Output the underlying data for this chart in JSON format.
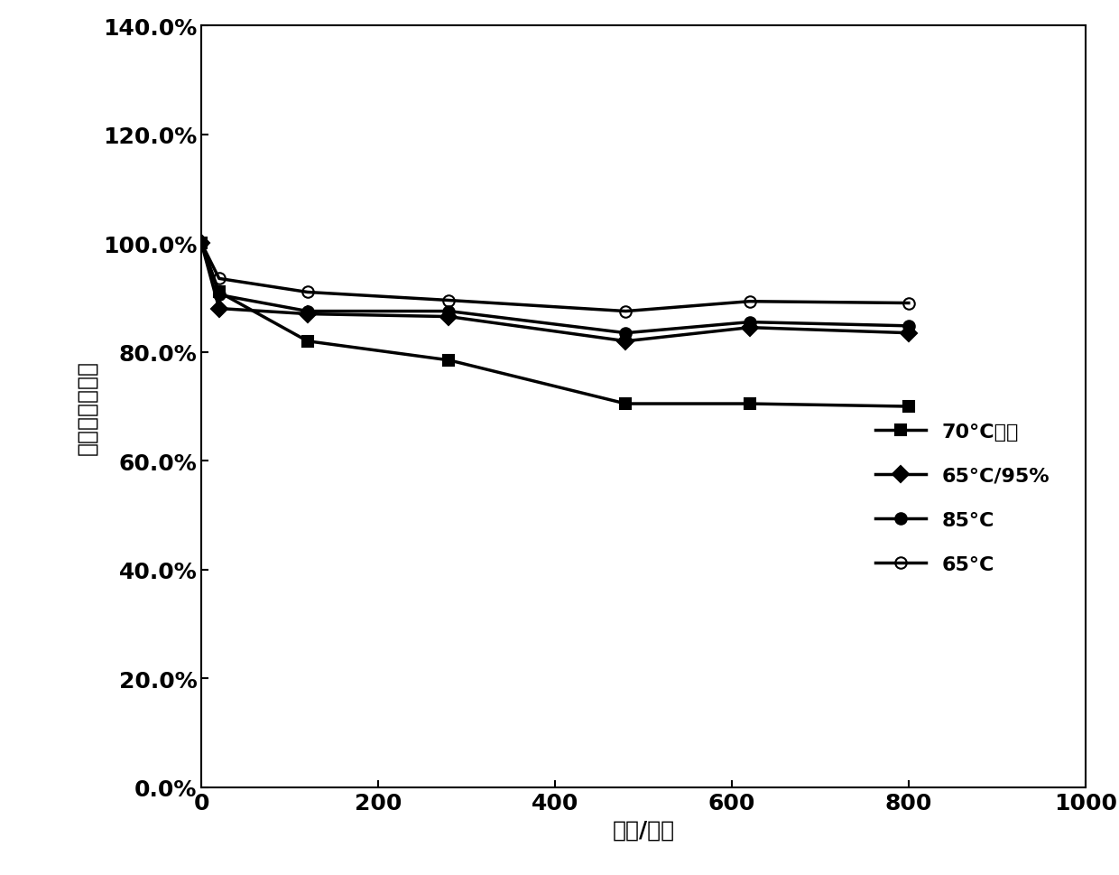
{
  "series": [
    {
      "label": "70°C光照",
      "x": [
        0,
        20,
        120,
        280,
        480,
        620,
        800
      ],
      "y": [
        1.0,
        0.91,
        0.82,
        0.785,
        0.705,
        0.705,
        0.7
      ],
      "marker": "s",
      "fillstyle": "full",
      "color": "#000000",
      "linewidth": 2.5,
      "markersize": 9
    },
    {
      "label": "65°C/95%",
      "x": [
        0,
        20,
        120,
        280,
        480,
        620,
        800
      ],
      "y": [
        1.0,
        0.88,
        0.87,
        0.865,
        0.82,
        0.845,
        0.835
      ],
      "marker": "D",
      "fillstyle": "full",
      "color": "#000000",
      "linewidth": 2.5,
      "markersize": 9
    },
    {
      "label": "85°C",
      "x": [
        0,
        20,
        120,
        280,
        480,
        620,
        800
      ],
      "y": [
        1.0,
        0.905,
        0.875,
        0.875,
        0.835,
        0.855,
        0.848
      ],
      "marker": "o",
      "fillstyle": "full",
      "color": "#000000",
      "linewidth": 2.5,
      "markersize": 9
    },
    {
      "label": "65°C",
      "x": [
        0,
        20,
        120,
        280,
        480,
        620,
        800
      ],
      "y": [
        1.0,
        0.935,
        0.91,
        0.895,
        0.875,
        0.893,
        0.89
      ],
      "marker": "o",
      "fillstyle": "none",
      "color": "#000000",
      "linewidth": 2.5,
      "markersize": 9
    }
  ],
  "xlabel": "时间/小时",
  "ylabel": "效率相对变化率",
  "xlim": [
    0,
    1000
  ],
  "ylim": [
    0.0,
    1.4
  ],
  "xticks": [
    0,
    200,
    400,
    600,
    800,
    1000
  ],
  "yticks": [
    0.0,
    0.2,
    0.4,
    0.6,
    0.8,
    1.0,
    1.2,
    1.4
  ],
  "ytick_labels": [
    "0.0%",
    "20.0%",
    "40.0%",
    "60.0%",
    "80.0%",
    "100.0%",
    "120.0%",
    "140.0%"
  ],
  "background_color": "#ffffff",
  "tick_fontsize": 18,
  "label_fontsize": 18,
  "legend_fontsize": 16
}
